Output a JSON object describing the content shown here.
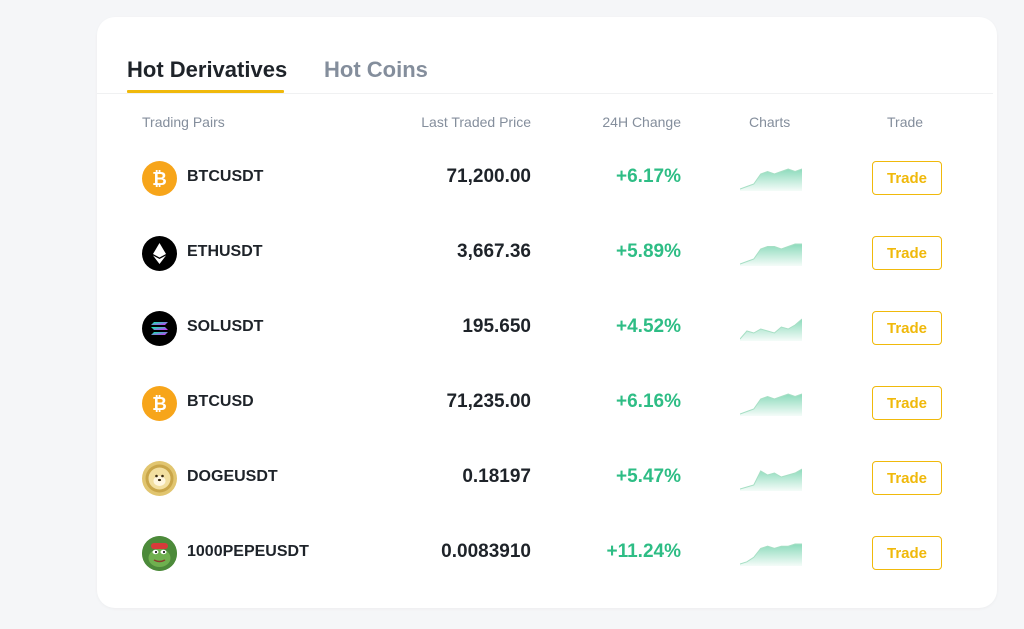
{
  "tabs": [
    {
      "label": "Hot Derivatives",
      "active": true
    },
    {
      "label": "Hot Coins",
      "active": false
    }
  ],
  "table": {
    "headers": {
      "pair": "Trading Pairs",
      "price": "Last Traded Price",
      "change": "24H Change",
      "charts": "Charts",
      "trade": "Trade"
    },
    "rows": [
      {
        "pair": "BTCUSDT",
        "icon": "bitcoin-icon",
        "price": "71,200.00",
        "change": "+6.17%",
        "trade_label": "Trade",
        "spark": [
          3,
          4,
          5,
          9,
          10,
          9,
          10,
          11,
          10,
          11
        ]
      },
      {
        "pair": "ETHUSDT",
        "icon": "ethereum-icon",
        "price": "3,667.36",
        "change": "+5.89%",
        "trade_label": "Trade",
        "spark": [
          2,
          3,
          4,
          8,
          9,
          9,
          8,
          9,
          10,
          10
        ]
      },
      {
        "pair": "SOLUSDT",
        "icon": "solana-icon",
        "price": "195.650",
        "change": "+4.52%",
        "trade_label": "Trade",
        "spark": [
          2,
          6,
          5,
          7,
          6,
          5,
          8,
          7,
          9,
          12
        ]
      },
      {
        "pair": "BTCUSD",
        "icon": "bitcoin-icon",
        "price": "71,235.00",
        "change": "+6.16%",
        "trade_label": "Trade",
        "spark": [
          3,
          4,
          5,
          9,
          10,
          9,
          10,
          11,
          10,
          11
        ]
      },
      {
        "pair": "DOGEUSDT",
        "icon": "dogecoin-icon",
        "price": "0.18197",
        "change": "+5.47%",
        "trade_label": "Trade",
        "spark": [
          2,
          3,
          4,
          11,
          9,
          10,
          8,
          9,
          10,
          12
        ]
      },
      {
        "pair": "1000PEPEUSDT",
        "icon": "pepe-icon",
        "price": "0.0083910",
        "change": "+11.24%",
        "trade_label": "Trade",
        "spark": [
          2,
          3,
          5,
          9,
          10,
          9,
          10,
          10,
          11,
          11
        ]
      }
    ]
  },
  "colors": {
    "accent": "#f0b90b",
    "positive": "#2ebd85",
    "text_primary": "#1e2329",
    "text_secondary": "#848e9c"
  }
}
